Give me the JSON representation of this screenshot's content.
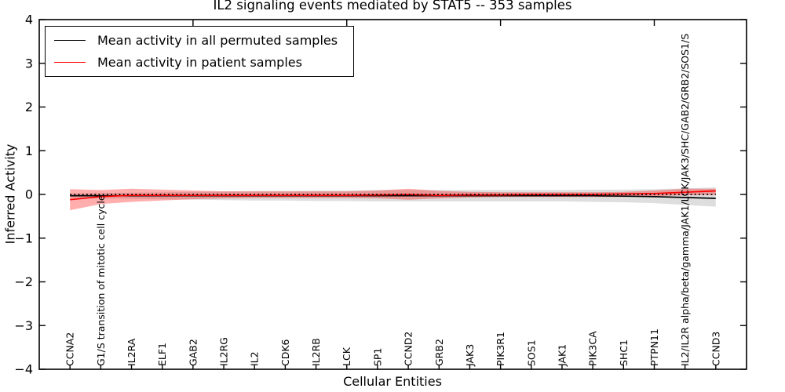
{
  "chart_data": {
    "type": "line",
    "title": "IL2 signaling events mediated by STAT5 -- 353 samples",
    "xlabel": "Cellular Entities",
    "ylabel": "Inferred Activity",
    "ylim": [
      -4,
      4
    ],
    "xlim_units": [
      -1,
      22
    ],
    "grid": false,
    "legend_position": "upper left",
    "zero_line": true,
    "categories": [
      "CCNA2",
      "G1/S transition of mitotic cell cycle",
      "IL2RA",
      "ELF1",
      "GAB2",
      "IL2RG",
      "IL2",
      "CDK6",
      "IL2RB",
      "LCK",
      "SP1",
      "CCND2",
      "GRB2",
      "JAK3",
      "PIK3R1",
      "SOS1",
      "JAK1",
      "PIK3CA",
      "SHC1",
      "PTPN11",
      "IL2/IL2R alpha/beta/gamma/JAK1/LCK/JAK3/SHC/GAB2/GRB2/SOS1/S",
      "CCND3"
    ],
    "yticks": [
      {
        "value": 4,
        "label": "4"
      },
      {
        "value": 3,
        "label": "3"
      },
      {
        "value": 2,
        "label": "2"
      },
      {
        "value": 1,
        "label": "1"
      },
      {
        "value": 0,
        "label": "0"
      },
      {
        "value": -1,
        "label": "−1"
      },
      {
        "value": -2,
        "label": "−2"
      },
      {
        "value": -3,
        "label": "−3"
      },
      {
        "value": -4,
        "label": "−4"
      }
    ],
    "top_tick_indices": [
      4,
      9,
      14,
      19
    ],
    "series": [
      {
        "id": "permuted-mean-line",
        "name": "Mean activity in all permuted samples",
        "color": "#000000",
        "values": [
          -0.03,
          -0.03,
          -0.03,
          -0.03,
          -0.03,
          -0.03,
          -0.03,
          -0.03,
          -0.03,
          -0.03,
          -0.03,
          -0.03,
          -0.03,
          -0.03,
          -0.03,
          -0.03,
          -0.03,
          -0.03,
          -0.04,
          -0.05,
          -0.07,
          -0.09
        ]
      },
      {
        "id": "patient-mean-line",
        "name": "Mean activity in patient samples",
        "color": "#ff0000",
        "values": [
          -0.12,
          -0.05,
          -0.02,
          -0.02,
          -0.02,
          -0.02,
          -0.02,
          -0.02,
          -0.02,
          -0.02,
          -0.01,
          0.0,
          -0.02,
          -0.01,
          -0.01,
          0.0,
          0.0,
          0.0,
          0.01,
          0.02,
          0.05,
          0.08
        ]
      }
    ],
    "bands": [
      {
        "id": "permuted-range-band",
        "series": "Mean activity in all permuted samples",
        "color": "#000000",
        "opacity": 0.13,
        "upper": [
          0.02,
          0.03,
          0.04,
          0.05,
          0.06,
          0.07,
          0.08,
          0.08,
          0.09,
          0.09,
          0.1,
          0.1,
          0.1,
          0.1,
          0.1,
          0.1,
          0.1,
          0.11,
          0.11,
          0.12,
          0.14,
          0.16
        ],
        "lower": [
          -0.08,
          -0.09,
          -0.1,
          -0.11,
          -0.12,
          -0.13,
          -0.14,
          -0.14,
          -0.15,
          -0.15,
          -0.16,
          -0.16,
          -0.16,
          -0.16,
          -0.16,
          -0.16,
          -0.16,
          -0.17,
          -0.18,
          -0.2,
          -0.24,
          -0.28
        ]
      },
      {
        "id": "patient-range-band",
        "series": "Mean activity in patient samples",
        "color": "#ff0000",
        "opacity": 0.32,
        "upper": [
          0.12,
          0.1,
          0.13,
          0.11,
          0.09,
          0.07,
          0.07,
          0.07,
          0.07,
          0.07,
          0.09,
          0.13,
          0.08,
          0.06,
          0.05,
          0.05,
          0.05,
          0.05,
          0.06,
          0.09,
          0.13,
          0.13
        ],
        "lower": [
          -0.36,
          -0.22,
          -0.17,
          -0.14,
          -0.11,
          -0.09,
          -0.08,
          -0.08,
          -0.08,
          -0.08,
          -0.09,
          -0.12,
          -0.09,
          -0.07,
          -0.06,
          -0.06,
          -0.06,
          -0.06,
          -0.06,
          -0.04,
          -0.02,
          -0.01
        ]
      }
    ]
  },
  "legend": [
    {
      "label": "Mean activity in all permuted samples",
      "color": "#000000"
    },
    {
      "label": "Mean activity in patient samples",
      "color": "#ff0000"
    }
  ]
}
